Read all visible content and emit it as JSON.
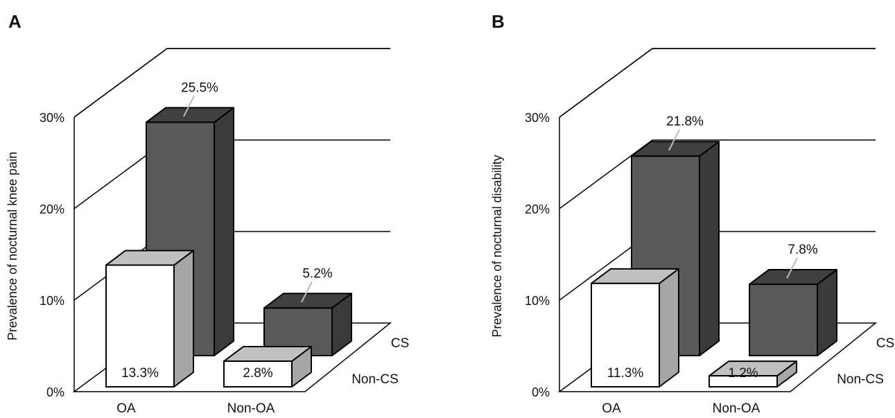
{
  "chart_data": [
    {
      "type": "bar",
      "panel": "A",
      "title": "",
      "ylabel": "Prevalence of nocturnal knee pain",
      "xlabel": "",
      "categories": [
        "OA",
        "Non-OA"
      ],
      "depth_categories": [
        "Non-CS",
        "CS"
      ],
      "series": [
        {
          "name": "Non-CS",
          "values": [
            13.3,
            2.8
          ],
          "labels": [
            "13.3%",
            "2.8%"
          ]
        },
        {
          "name": "CS",
          "values": [
            25.5,
            5.2
          ],
          "labels": [
            "25.5%",
            "5.2%"
          ]
        }
      ],
      "yticks": [
        "0%",
        "10%",
        "20%",
        "30%"
      ],
      "ylim": [
        0,
        30
      ],
      "grid": true
    },
    {
      "type": "bar",
      "panel": "B",
      "title": "",
      "ylabel": "Prevalence of nocturnal disability",
      "xlabel": "",
      "categories": [
        "OA",
        "Non-OA"
      ],
      "depth_categories": [
        "Non-CS",
        "CS"
      ],
      "series": [
        {
          "name": "Non-CS",
          "values": [
            11.3,
            1.2
          ],
          "labels": [
            "11.3%",
            "1.2%"
          ]
        },
        {
          "name": "CS",
          "values": [
            21.8,
            7.8
          ],
          "labels": [
            "21.8%",
            "7.8%"
          ]
        }
      ],
      "yticks": [
        "0%",
        "10%",
        "20%",
        "30%"
      ],
      "ylim": [
        0,
        30
      ],
      "grid": true
    }
  ],
  "colors": {
    "front_face": "#ffffff",
    "front_top": "#c0c0c0",
    "front_side": "#a6a6a6",
    "back_face": "#595959",
    "back_top": "#404040",
    "back_side": "#3a3a3a",
    "line": "#000000",
    "leader": "#bbbbbb"
  }
}
